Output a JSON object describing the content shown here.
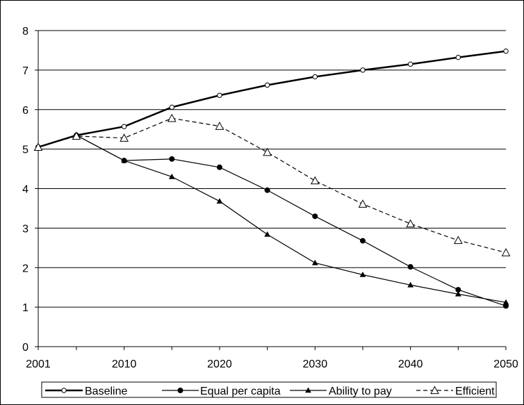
{
  "chart_data": {
    "type": "line",
    "x": [
      2001,
      2005,
      2010,
      2015,
      2020,
      2025,
      2030,
      2035,
      2040,
      2045,
      2050
    ],
    "x_ticks": [
      2001,
      2010,
      2020,
      2030,
      2040,
      2050
    ],
    "xlim": [
      2001,
      2050
    ],
    "ylim": [
      0,
      8
    ],
    "y_ticks": [
      0,
      1,
      2,
      3,
      4,
      5,
      6,
      7,
      8
    ],
    "grid": "horizontal",
    "legend": "bottom",
    "series": [
      {
        "name": "Baseline",
        "marker": "open-circle",
        "dash": "solid",
        "weight": "thick",
        "values": [
          5.05,
          5.35,
          5.57,
          6.06,
          6.36,
          6.62,
          6.83,
          7.0,
          7.15,
          7.32,
          7.48
        ]
      },
      {
        "name": "Equal per capita",
        "marker": "filled-circle",
        "dash": "solid",
        "weight": "thin",
        "values": [
          5.05,
          5.35,
          4.71,
          4.75,
          4.54,
          3.96,
          3.3,
          2.68,
          2.02,
          1.44,
          1.03
        ]
      },
      {
        "name": "Ability to pay",
        "marker": "filled-triangle",
        "dash": "solid",
        "weight": "thin",
        "values": [
          5.05,
          5.35,
          4.71,
          4.3,
          3.68,
          2.84,
          2.12,
          1.82,
          1.56,
          1.33,
          1.12
        ]
      },
      {
        "name": "Efficient",
        "marker": "open-triangle",
        "dash": "dashed",
        "weight": "thin",
        "values": [
          5.05,
          5.33,
          5.28,
          5.78,
          5.58,
          4.92,
          4.2,
          3.61,
          3.11,
          2.69,
          2.38
        ]
      }
    ]
  }
}
